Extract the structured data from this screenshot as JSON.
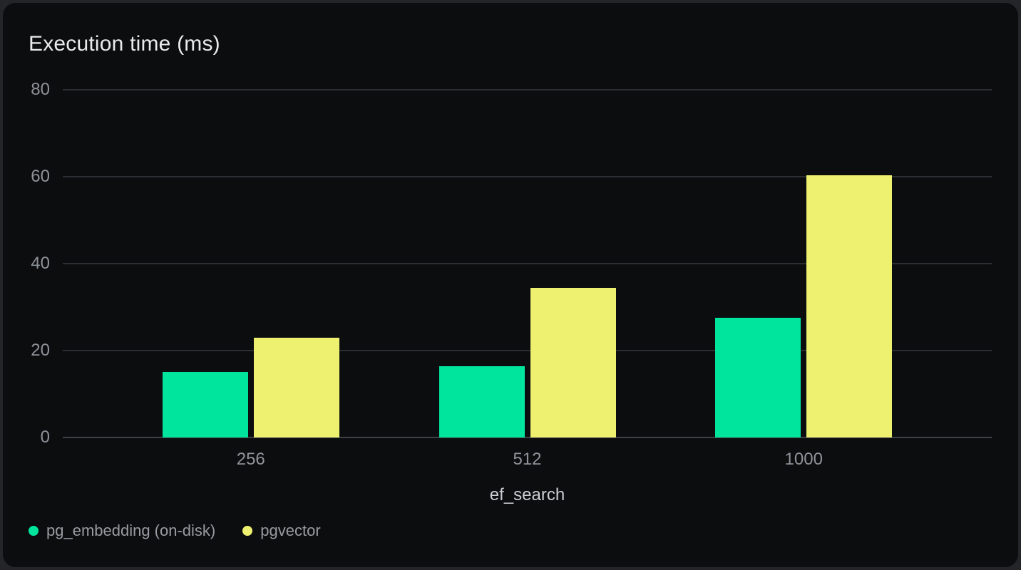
{
  "title": "Execution time (ms)",
  "chart_data": {
    "type": "bar",
    "title": "Execution time (ms)",
    "categories": [
      "256",
      "512",
      "1000"
    ],
    "series": [
      {
        "name": "pg_embedding (on-disk)",
        "color": "#00E59E",
        "values": [
          15.1,
          16.4,
          27.5
        ]
      },
      {
        "name": "pgvector",
        "color": "#EEF06F",
        "values": [
          23.0,
          34.4,
          60.3
        ]
      }
    ],
    "xlabel": "ef_search",
    "ylabel": "",
    "ylim": [
      0,
      80
    ],
    "yticks": [
      0,
      20,
      40,
      60,
      80
    ],
    "grid": true,
    "legend_position": "bottom-left"
  },
  "colors": {
    "page_background": "#232528",
    "card_background": "#0C0D0E",
    "gridline": "#2B2E32",
    "axis_line": "#3E4247",
    "title_text": "#E8EAEC",
    "tick_text": "#8E939A",
    "axis_label_text": "#CBCFD4",
    "legend_text": "#979CA3"
  }
}
